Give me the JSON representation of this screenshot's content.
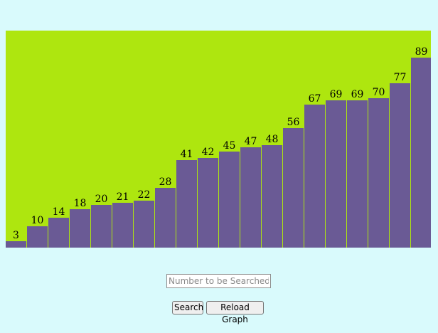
{
  "chart_data": {
    "type": "bar",
    "values": [
      3,
      10,
      14,
      18,
      20,
      21,
      22,
      28,
      41,
      42,
      45,
      47,
      48,
      56,
      67,
      69,
      69,
      70,
      77,
      89
    ],
    "data_labels": [
      "3",
      "10",
      "14",
      "18",
      "20",
      "21",
      "22",
      "28",
      "41",
      "42",
      "45",
      "47",
      "48",
      "56",
      "67",
      "69",
      "69",
      "70",
      "77",
      "89"
    ],
    "ylim": [
      0,
      100
    ],
    "grid": false,
    "colors": {
      "background": "#aee60f",
      "bar": "#6a5a95",
      "bar_border": "#aee60f",
      "label": "#000000"
    }
  },
  "controls": {
    "search_placeholder": "Number to be Searched",
    "search_label": "Search",
    "reload_label": "Reload Graph"
  },
  "page": {
    "background": "#d9fafc"
  }
}
